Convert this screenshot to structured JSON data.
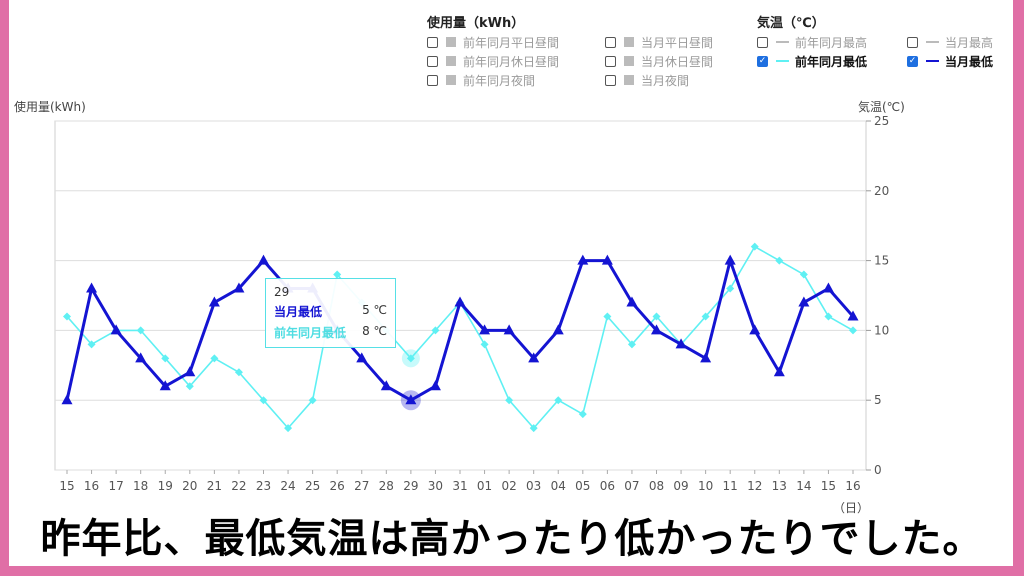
{
  "legend": {
    "usage_title": "使用量（kWh）",
    "temp_title": "気温（℃）",
    "usage_items": [
      {
        "label": "前年同月平日昼間",
        "checked": false
      },
      {
        "label": "前年同月休日昼間",
        "checked": false
      },
      {
        "label": "前年同月夜間",
        "checked": false
      },
      {
        "label": "当月平日昼間",
        "checked": false
      },
      {
        "label": "当月休日昼間",
        "checked": false
      },
      {
        "label": "当月夜間",
        "checked": false
      }
    ],
    "temp_items": [
      {
        "label": "前年同月最高",
        "checked": false
      },
      {
        "label": "前年同月最低",
        "checked": true
      },
      {
        "label": "当月最高",
        "checked": false
      },
      {
        "label": "当月最低",
        "checked": true
      }
    ]
  },
  "axes": {
    "left_title": "使用量(kWh)",
    "right_title": "気温(℃)",
    "x_unit": "（日）"
  },
  "tooltip": {
    "day": "29",
    "rows": [
      {
        "label": "当月最低",
        "value": "5 ℃"
      },
      {
        "label": "前年同月最低",
        "value": "8 ℃"
      }
    ]
  },
  "caption": "昨年比、最低気温は高かったり低かったりでした。",
  "colors": {
    "current_min": "#1414d2",
    "prev_min": "#5ff0f3",
    "grid": "#dddddd",
    "checkbox": "#1e6fe0"
  },
  "chart_data": {
    "type": "line",
    "categories": [
      "15",
      "16",
      "17",
      "18",
      "19",
      "20",
      "21",
      "22",
      "23",
      "24",
      "25",
      "26",
      "27",
      "28",
      "29",
      "30",
      "31",
      "01",
      "02",
      "03",
      "04",
      "05",
      "06",
      "07",
      "08",
      "09",
      "10",
      "11",
      "12",
      "13",
      "14",
      "15",
      "16"
    ],
    "y_right": {
      "min": 0,
      "max": 25,
      "ticks": [
        0,
        5,
        10,
        15,
        20,
        25
      ]
    },
    "series": [
      {
        "name": "当月最低",
        "color": "#1414d2",
        "marker": "triangle",
        "values": [
          5,
          13,
          10,
          8,
          6,
          7,
          12,
          13,
          15,
          13,
          13,
          10,
          8,
          6,
          5,
          6,
          12,
          10,
          10,
          8,
          10,
          15,
          15,
          12,
          10,
          9,
          8,
          15,
          10,
          7,
          12,
          13,
          11
        ]
      },
      {
        "name": "前年同月最低",
        "color": "#5ff0f3",
        "marker": "diamond",
        "values": [
          11,
          9,
          10,
          10,
          8,
          6,
          8,
          7,
          5,
          3,
          5,
          14,
          12,
          10,
          8,
          10,
          12,
          9,
          5,
          3,
          5,
          4,
          11,
          9,
          11,
          9,
          11,
          13,
          16,
          15,
          14,
          11,
          10
        ]
      }
    ],
    "highlight_index": 14,
    "grid": true
  }
}
